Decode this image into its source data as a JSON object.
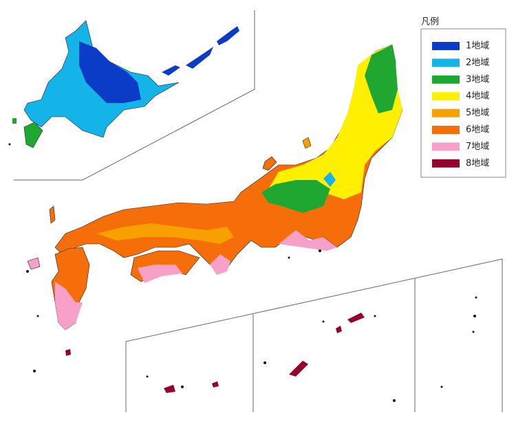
{
  "legend": {
    "title": "凡例",
    "items": [
      {
        "label": "1地域",
        "color": "#0a3cc8"
      },
      {
        "label": "2地域",
        "color": "#14b4e8"
      },
      {
        "label": "3地域",
        "color": "#1ea832"
      },
      {
        "label": "4地域",
        "color": "#fff000"
      },
      {
        "label": "5地域",
        "color": "#f7a000"
      },
      {
        "label": "6地域",
        "color": "#f56e0a"
      },
      {
        "label": "7地域",
        "color": "#f7a0c8"
      },
      {
        "label": "8地域",
        "color": "#96002d"
      }
    ]
  }
}
